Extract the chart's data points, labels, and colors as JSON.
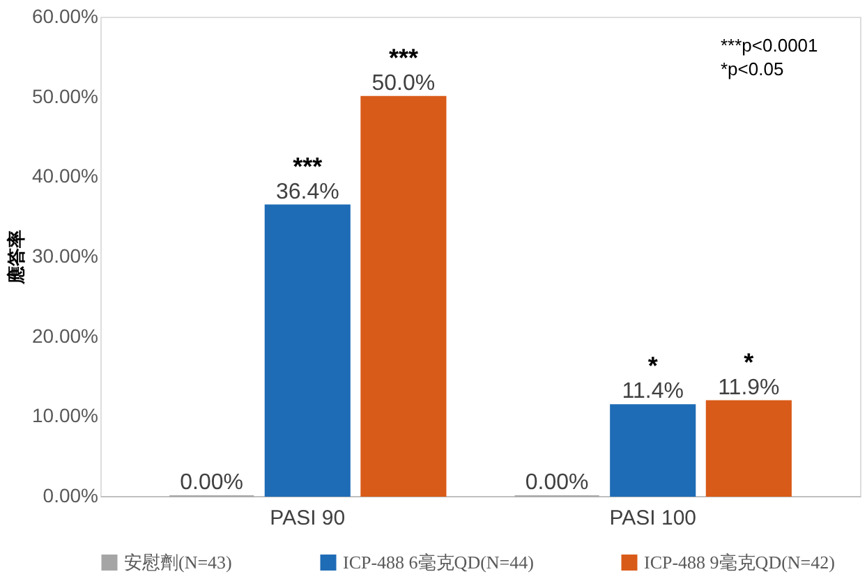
{
  "chart_data": {
    "type": "bar",
    "ylabel": "應答率",
    "categories": [
      "PASI 90",
      "PASI 100"
    ],
    "series": [
      {
        "name": "安慰劑(N=43)",
        "color": "#a5a5a5",
        "values": [
          0,
          0
        ],
        "value_labels": [
          "0.00%",
          "0.00%"
        ]
      },
      {
        "name": "ICP-488 6毫克QD(N=44)",
        "color": "#1f6cb6",
        "values": [
          36.4,
          11.4
        ],
        "value_labels": [
          "36.4%",
          "11.4%"
        ]
      },
      {
        "name": "ICP-488 9毫克QD(N=42)",
        "color": "#d95b19",
        "values": [
          50.0,
          11.9
        ],
        "value_labels": [
          "50.0%",
          "11.9%"
        ]
      }
    ],
    "ylim": [
      0,
      60
    ],
    "yticks": [
      {
        "value": 0,
        "label": "0.00%"
      },
      {
        "value": 10,
        "label": "10.00%"
      },
      {
        "value": 20,
        "label": "20.00%"
      },
      {
        "value": 30,
        "label": "30.00%"
      },
      {
        "value": 40,
        "label": "40.00%"
      },
      {
        "value": 50,
        "label": "50.00%"
      },
      {
        "value": 60,
        "label": "60.00%"
      }
    ],
    "annotations": [
      {
        "text": "***",
        "x": "PASI 90",
        "y": 36.4
      },
      "***",
      {
        "text": "*",
        "x": "PASI 100",
        "y": 11.4
      },
      "*",
      "***p<0.0001\n*p<0.05"
    ],
    "grid": false,
    "legend": "bottom"
  }
}
